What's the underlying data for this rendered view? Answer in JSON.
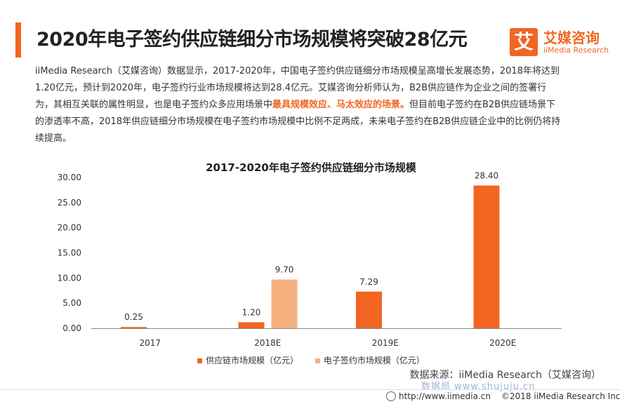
{
  "header": {
    "title": "2020年电子签约供应链细分市场规模将突破28亿元",
    "logo_mark": "艾",
    "logo_cn": "艾媒咨询",
    "logo_en": "iiMedia Research"
  },
  "description": {
    "before": "iiMedia Research（艾媒咨询）数据显示，2017-2020年，中国电子签约供应链细分市场规模呈高增长发展态势，2018年将达到1.20亿元，预计到2020年，电子签约行业市场规模将达到28.4亿元。艾媒咨询分析师认为，B2B供应链作为企业之间的签署行为，其相互关联的属性明显，也是电子签约众多应用场景中",
    "highlight": "最具规模效应、马太效应的场景。",
    "after": "但目前电子签约在B2B供应链场景下的渗透率不高，2018年供应链细分市场规模在电子签约市场规模中比例不足两成，未来电子签约在B2B供应链企业中的比例仍将持续提高。"
  },
  "colors": {
    "accent": "#f26522",
    "series_light": "#f5b07f",
    "axis": "#888888"
  },
  "chart_data": {
    "type": "bar",
    "title": "2017-2020年电子签约供应链细分市场规模",
    "categories": [
      "2017",
      "2018E",
      "2019E",
      "2020E"
    ],
    "series": [
      {
        "name": "供应链市场规模（亿元）",
        "values": [
          0.25,
          1.2,
          7.29,
          28.4
        ],
        "color": "#f26522"
      },
      {
        "name": "电子签约市场规模（亿元）",
        "values": [
          null,
          9.7,
          null,
          null
        ],
        "color": "#f5b07f"
      }
    ],
    "y_ticks": [
      "0.00",
      "5.00",
      "10.00",
      "15.00",
      "20.00",
      "25.00",
      "30.00"
    ],
    "ylim": [
      0,
      30
    ],
    "grid": false,
    "legend_position": "bottom"
  },
  "footer": {
    "source": "数据来源：iiMedia Research（艾媒咨询）",
    "watermark": "数据局 www.shujuju.cn",
    "url": "http://www.iimedia.cn",
    "copyright": "©2018 iiMedia Research Inc"
  }
}
